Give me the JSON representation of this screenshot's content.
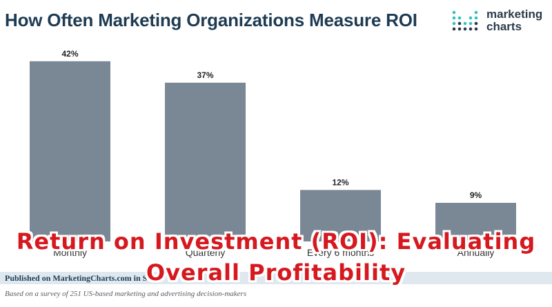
{
  "title": "How Often Marketing Organizations Measure ROI",
  "logo": {
    "line1": "marketing",
    "line2": "charts"
  },
  "colors": {
    "bar": "#7a8794",
    "title": "#1e3b52",
    "overlay": "#d6181f",
    "footer_bg": "#dfe8ef"
  },
  "chart_data": {
    "type": "bar",
    "categories": [
      "Monthly",
      "Quarterly",
      "Every 6 months",
      "Annually"
    ],
    "values": [
      42,
      37,
      12,
      9
    ],
    "value_labels": [
      "42%",
      "37%",
      "12%",
      "9%"
    ],
    "title": "How Often Marketing Organizations Measure ROI",
    "xlabel": "",
    "ylabel": "",
    "ylim": [
      0,
      50
    ],
    "grid": false,
    "legend": "none"
  },
  "footer": {
    "published": "Published on MarketingCharts.com in S",
    "note": "Based on a survey of 251 US-based marketing and advertising decision-makers"
  },
  "overlay": {
    "line1": "Return on Investment (ROI): Evaluating",
    "line2": "Overall Profitability"
  }
}
